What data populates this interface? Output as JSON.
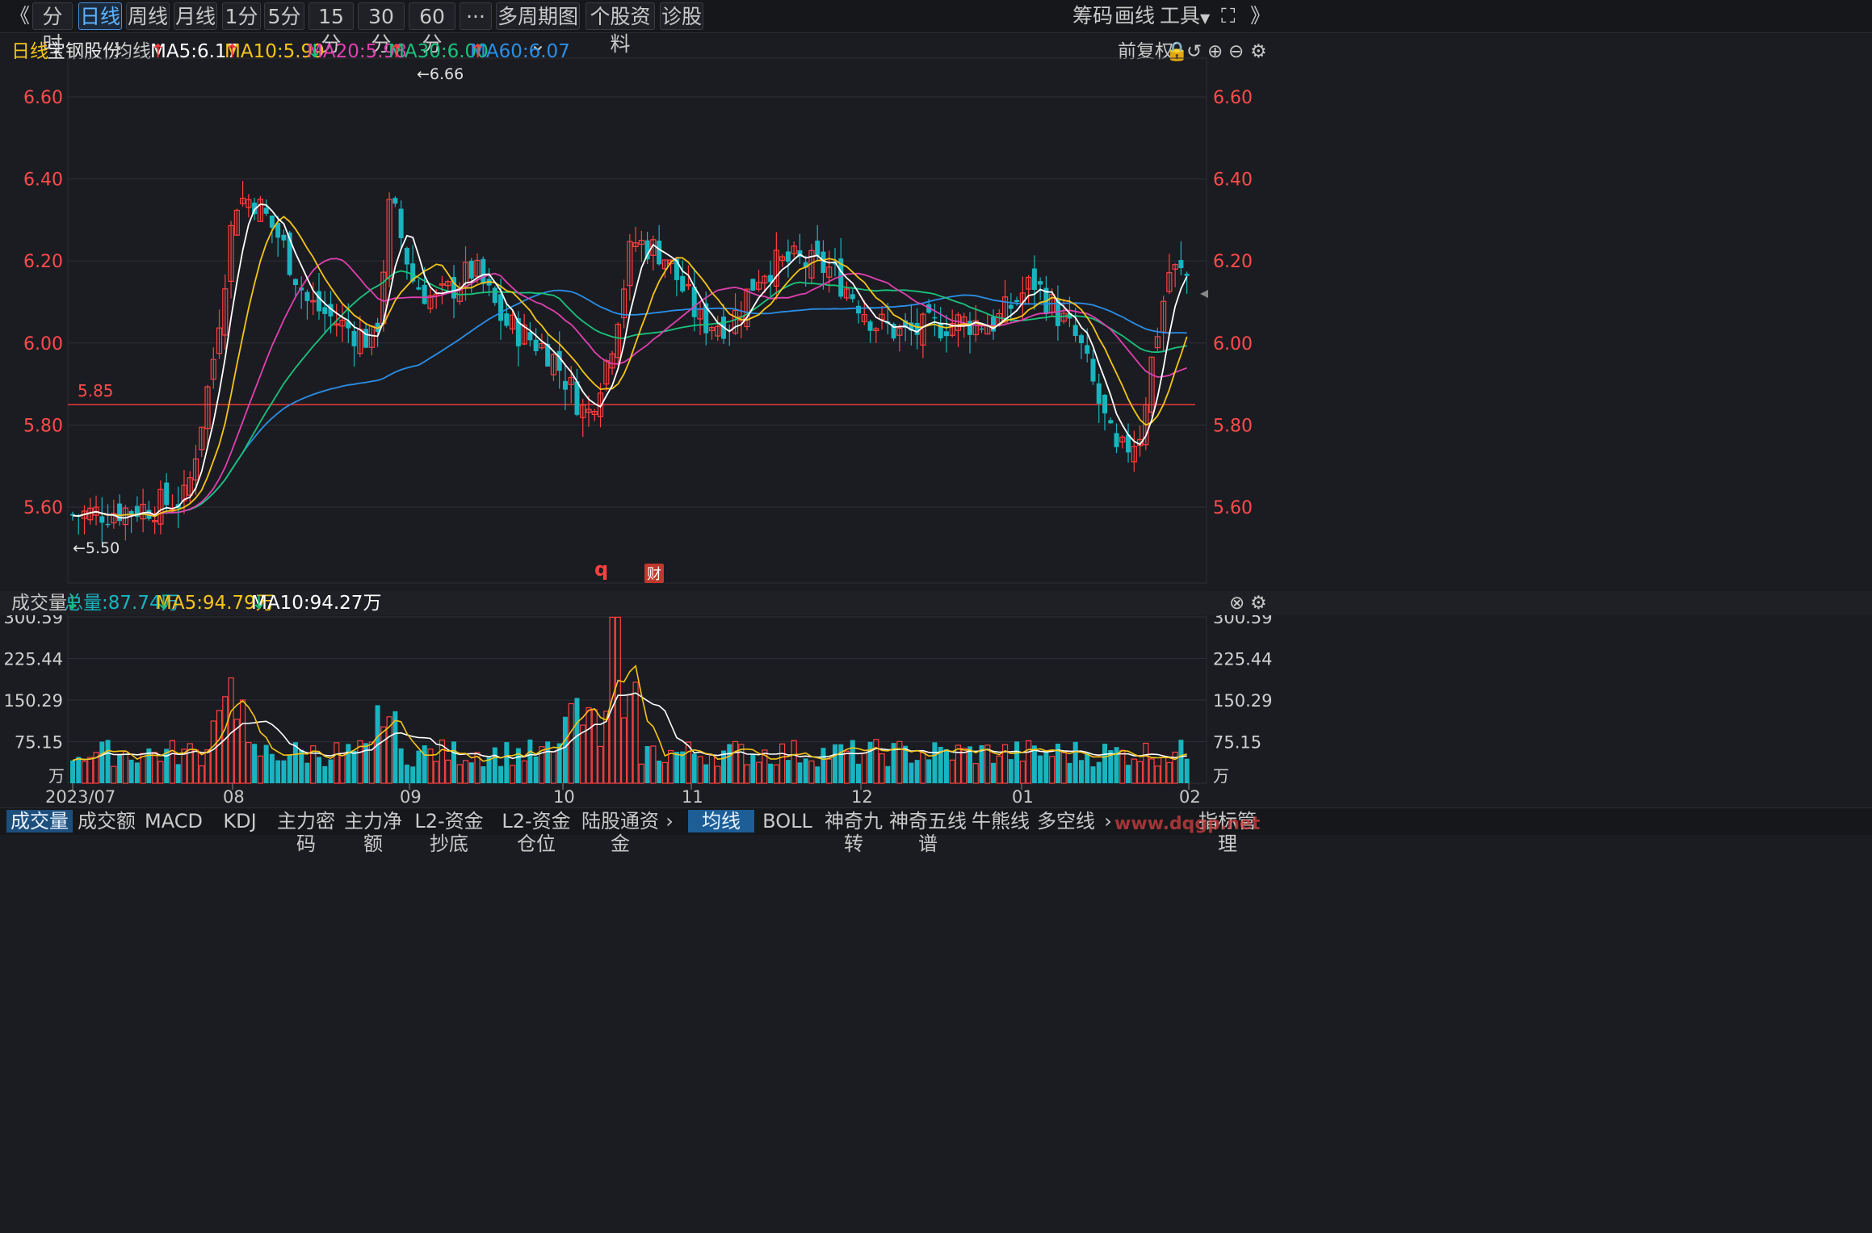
{
  "toolbar": {
    "back": "《",
    "tabs": [
      "分时",
      "日线",
      "周线",
      "月线",
      "1分",
      "5分",
      "15分",
      "30分",
      "60分",
      "···",
      "多周期图",
      "个股资料",
      "诊股"
    ],
    "active_tab": "日线",
    "right": [
      "筹码",
      "画线",
      "工具"
    ]
  },
  "info": {
    "period": "日线",
    "stock_name": "宝钢股份",
    "ma_label": "均线",
    "ma": [
      {
        "text": "MA5:6.17",
        "dir": "up",
        "color": "#ffffff"
      },
      {
        "text": "MA10:5.99",
        "dir": "up",
        "color": "#f5c518"
      },
      {
        "text": "MA20:5.98",
        "dir": "down",
        "color": "#e040b0"
      },
      {
        "text": "MA30:6.00",
        "dir": "up",
        "color": "#19c37d"
      },
      {
        "text": "MA60:6.07",
        "dir": "up",
        "color": "#2a8fe8"
      }
    ],
    "fq": "前复权"
  },
  "kline": {
    "price_ticks": [
      "6.60",
      "6.40",
      "6.20",
      "6.00",
      "5.80",
      "5.60"
    ],
    "tick_values": [
      6.6,
      6.4,
      6.2,
      6.0,
      5.8,
      5.6
    ],
    "hline_value": 5.85,
    "hline_label": "5.85",
    "high_label": "←6.66",
    "low_label": "←5.50",
    "q_label": "q",
    "cai_label": "财",
    "colors": {
      "up": "#ff4040",
      "down": "#18b5c0",
      "ma5": "#ffffff",
      "ma10": "#f5c518",
      "ma20": "#e040b0",
      "ma30": "#19c37d",
      "ma60": "#2a8fe8"
    }
  },
  "volume": {
    "label": "成交量",
    "total": "总量:87.74万",
    "ma5": "MA5:94.79万",
    "ma10": "MA10:94.27万",
    "ticks": [
      "300.59",
      "225.44",
      "150.29",
      "75.15"
    ],
    "tick_values": [
      300.59,
      225.44,
      150.29,
      75.15
    ],
    "unit": "万"
  },
  "xaxis": {
    "labels": [
      "2023/07",
      "08",
      "09",
      "10",
      "11",
      "12",
      "01",
      "02"
    ]
  },
  "bottom_tabs_left": [
    "成交量",
    "成交额",
    "MACD",
    "KDJ",
    "主力密码",
    "主力净额",
    "L2-资金抄底",
    "L2-资金仓位",
    "陆股通资金"
  ],
  "bottom_tabs_right": [
    "均线",
    "BOLL",
    "神奇九转",
    "神奇五线谱",
    "牛熊线",
    "多空线"
  ],
  "bottom_right": "指标管理",
  "watermark": "www.dqgp.net"
}
